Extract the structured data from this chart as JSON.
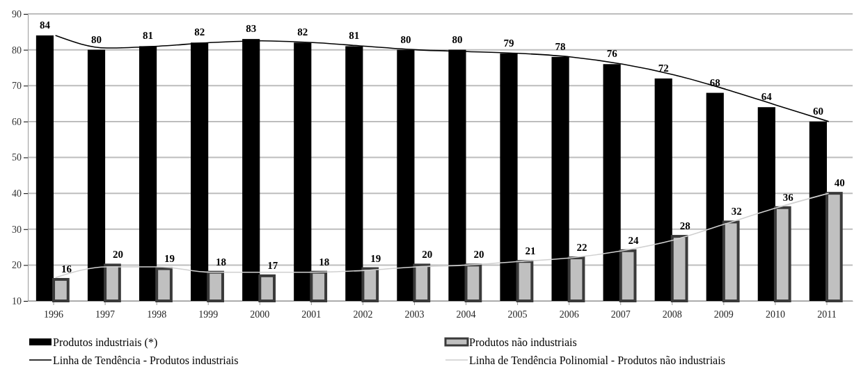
{
  "chart_data": {
    "type": "bar",
    "categories": [
      "1996",
      "1997",
      "1998",
      "1999",
      "2000",
      "2001",
      "2002",
      "2003",
      "2004",
      "2005",
      "2006",
      "2007",
      "2008",
      "2009",
      "2010",
      "2011"
    ],
    "series": [
      {
        "name": "Produtos industriais (*)",
        "color": "#000000",
        "values": [
          84,
          80,
          81,
          82,
          83,
          82,
          81,
          80,
          80,
          79,
          78,
          76,
          72,
          68,
          64,
          60
        ],
        "value_labels": [
          "84",
          "80",
          "81",
          "82",
          "83",
          "82",
          "81",
          "80",
          "80",
          "79",
          "78",
          "76",
          "72",
          "68",
          "64",
          "60"
        ]
      },
      {
        "name": "Produtos não industriais",
        "color": "#c0c0c0",
        "values": [
          16,
          20,
          19,
          18,
          17,
          18,
          19,
          20,
          20,
          21,
          22,
          24,
          28,
          32,
          36,
          40
        ],
        "value_labels": [
          "16",
          "20",
          "19",
          "18",
          "17",
          "18",
          "19",
          "20",
          "20",
          "21",
          "22",
          "24",
          "28",
          "32",
          "36",
          "40"
        ]
      },
      {
        "name": "Linha de Tendência - Produtos industriais",
        "type": "line",
        "color": "#000000",
        "values": [
          84,
          80.5,
          81,
          82,
          82.5,
          82,
          81,
          80,
          79.5,
          79,
          78,
          76,
          73,
          69,
          64.5,
          60
        ]
      },
      {
        "name": "Linha de Tendência Polinomial  - Produtos não industriais",
        "type": "line",
        "color": "#d0d0d0",
        "values": [
          16.5,
          19.5,
          19.5,
          18,
          18,
          18,
          18.5,
          19.5,
          20,
          21,
          22,
          24,
          27,
          31.5,
          36,
          40
        ]
      }
    ],
    "ylim": [
      10,
      90
    ],
    "yticks": [
      10,
      20,
      30,
      40,
      50,
      60,
      70,
      80,
      90
    ],
    "grid": "y",
    "legend": "bottom"
  }
}
